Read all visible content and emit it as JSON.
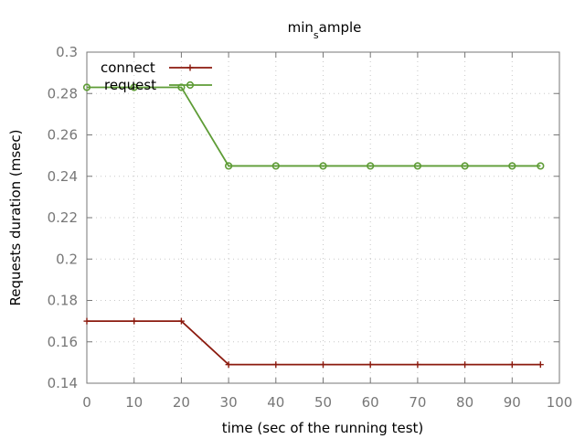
{
  "chart_data": {
    "type": "line",
    "title": "min_sample",
    "xlabel": "time (sec of the running test)",
    "ylabel": "Requests duration (msec)",
    "xlim": [
      0,
      100
    ],
    "ylim": [
      0.14,
      0.3
    ],
    "xticks": [
      0,
      10,
      20,
      30,
      40,
      50,
      60,
      70,
      80,
      90,
      100
    ],
    "yticks": [
      0.14,
      0.16,
      0.18,
      0.2,
      0.22,
      0.24,
      0.26,
      0.28,
      0.3
    ],
    "grid": true,
    "legend_position": "top-left",
    "series": [
      {
        "name": "connect",
        "marker": "plus",
        "color": "#8b1a0e",
        "x": [
          0,
          10,
          20,
          30,
          40,
          50,
          60,
          70,
          80,
          90,
          96
        ],
        "y": [
          0.17,
          0.17,
          0.17,
          0.149,
          0.149,
          0.149,
          0.149,
          0.149,
          0.149,
          0.149,
          0.149
        ]
      },
      {
        "name": "request",
        "marker": "circle",
        "color": "#5e9c36",
        "x": [
          0,
          10,
          20,
          30,
          40,
          50,
          60,
          70,
          80,
          90,
          96
        ],
        "y": [
          0.283,
          0.283,
          0.283,
          0.245,
          0.245,
          0.245,
          0.245,
          0.245,
          0.245,
          0.245,
          0.245
        ]
      }
    ]
  }
}
